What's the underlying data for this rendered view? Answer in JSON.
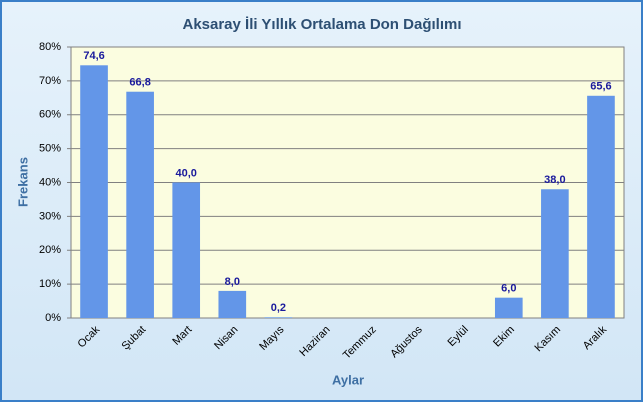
{
  "chart_data": {
    "type": "bar",
    "title": "Aksaray İli Yıllık Ortalama Don Dağılımı",
    "x_label": "Aylar",
    "y_label": "Frekans",
    "categories": [
      "Ocak",
      "Şubat",
      "Mart",
      "Nisan",
      "Mayıs",
      "Haziran",
      "Temmuz",
      "Ağustos",
      "Eylül",
      "Ekim",
      "Kasım",
      "Aralık"
    ],
    "values": [
      74.6,
      66.8,
      40.0,
      8.0,
      0.2,
      null,
      null,
      null,
      null,
      6.0,
      38.0,
      65.6
    ],
    "value_labels": [
      "74,6",
      "66,8",
      "40,0",
      "8,0",
      "0,2",
      null,
      null,
      null,
      null,
      "6,0",
      "38,0",
      "65,6"
    ],
    "color": "#6396e8",
    "ylim": [
      0,
      80
    ],
    "yticks": [
      {
        "value": 0,
        "label": "0%"
      },
      {
        "value": 10,
        "label": "10%"
      },
      {
        "value": 20,
        "label": "20%"
      },
      {
        "value": 30,
        "label": "30%"
      },
      {
        "value": 40,
        "label": "40%"
      },
      {
        "value": 50,
        "label": "50%"
      },
      {
        "value": 60,
        "label": "60%"
      },
      {
        "value": 70,
        "label": "70%"
      },
      {
        "value": 80,
        "label": "80%"
      }
    ],
    "grid": true
  }
}
